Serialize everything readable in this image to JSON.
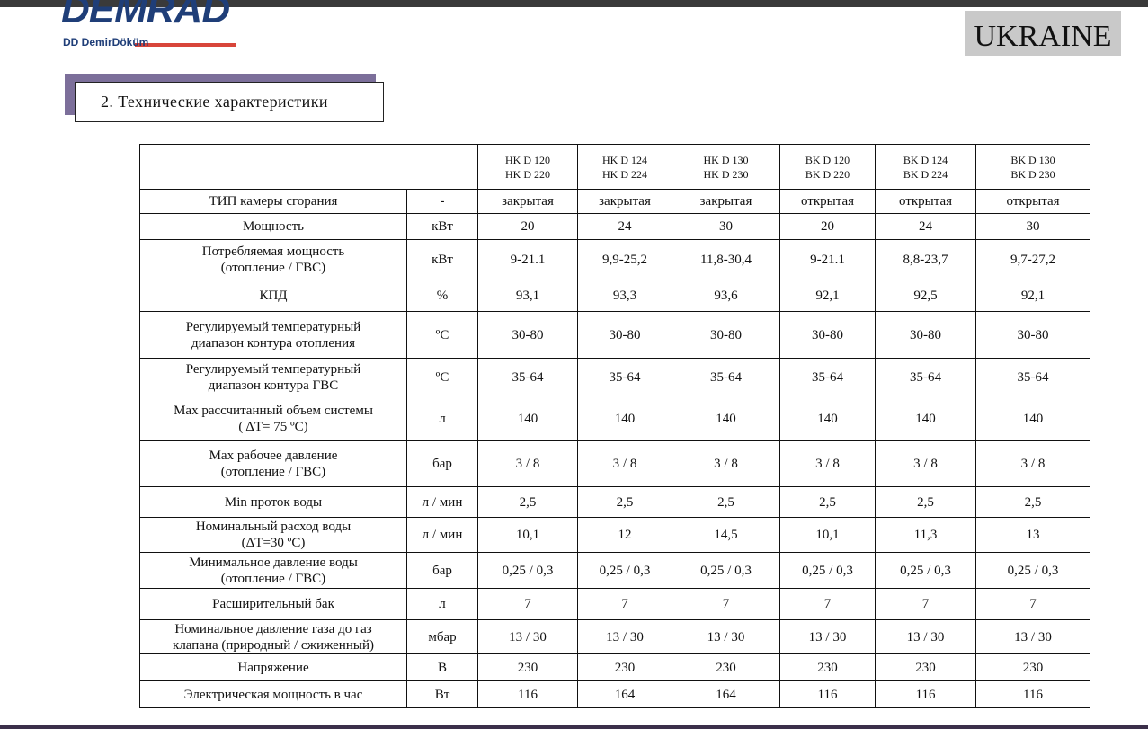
{
  "header": {
    "logo": "DEMRAD",
    "logo_sub": "DD DemirDöküm",
    "country": "UKRAINE"
  },
  "section": {
    "title": "2. Технические характеристики"
  },
  "table": {
    "columns": [
      [
        "HK D 120",
        "HK D 220"
      ],
      [
        "HK D 124",
        "HK D 224"
      ],
      [
        "HK D 130",
        "HK D 230"
      ],
      [
        "BK D 120",
        "BK D 220"
      ],
      [
        "BK D 124",
        "BK D 224"
      ],
      [
        "BK D 130",
        "BK D 230"
      ]
    ],
    "rows": [
      {
        "label": [
          "ТИП камеры сгорания"
        ],
        "unit": "-",
        "values": [
          "закрытая",
          "закрытая",
          "закрытая",
          "открытая",
          "открытая",
          "открытая"
        ]
      },
      {
        "label": [
          "Мощность"
        ],
        "unit": "кВт",
        "values": [
          "20",
          "24",
          "30",
          "20",
          "24",
          "30"
        ]
      },
      {
        "label": [
          "Потребляемая мощность",
          "(отопление / ГВС)"
        ],
        "unit": "кВт",
        "values": [
          "9-21.1",
          "9,9-25,2",
          "11,8-30,4",
          "9-21.1",
          "8,8-23,7",
          "9,7-27,2"
        ]
      },
      {
        "label": [
          "КПД"
        ],
        "unit": "%",
        "values": [
          "93,1",
          "93,3",
          "93,6",
          "92,1",
          "92,5",
          "92,1"
        ]
      },
      {
        "label": [
          "Регулируемый температурный",
          "диапазон контура отопления"
        ],
        "unit": "ºC",
        "values": [
          "30-80",
          "30-80",
          "30-80",
          "30-80",
          "30-80",
          "30-80"
        ]
      },
      {
        "label": [
          "Регулируемый температурный",
          "диапазон контура ГВС"
        ],
        "unit": "ºC",
        "values": [
          "35-64",
          "35-64",
          "35-64",
          "35-64",
          "35-64",
          "35-64"
        ]
      },
      {
        "label": [
          "Max рассчитанный объем системы",
          "( ΔT= 75 ºC)"
        ],
        "unit": "л",
        "values": [
          "140",
          "140",
          "140",
          "140",
          "140",
          "140"
        ]
      },
      {
        "label": [
          "Max рабочее давление",
          "(отопление / ГВС)"
        ],
        "unit": "бар",
        "values": [
          "3 / 8",
          "3 / 8",
          "3 / 8",
          "3 / 8",
          "3 / 8",
          "3 / 8"
        ]
      },
      {
        "label": [
          "Min проток воды"
        ],
        "unit": "л / мин",
        "values": [
          "2,5",
          "2,5",
          "2,5",
          "2,5",
          "2,5",
          "2,5"
        ]
      },
      {
        "label": [
          "Номинальный расход воды",
          "(ΔT=30 ºC)"
        ],
        "unit": "л / мин",
        "values": [
          "10,1",
          "12",
          "14,5",
          "10,1",
          "11,3",
          "13"
        ]
      },
      {
        "label": [
          "Минимальное давление воды",
          "(отопление / ГВС)"
        ],
        "unit": "бар",
        "values": [
          "0,25 / 0,3",
          "0,25 / 0,3",
          "0,25 / 0,3",
          "0,25 / 0,3",
          "0,25 / 0,3",
          "0,25 / 0,3"
        ]
      },
      {
        "label": [
          "Расширительный бак"
        ],
        "unit": "л",
        "values": [
          "7",
          "7",
          "7",
          "7",
          "7",
          "7"
        ]
      },
      {
        "label": [
          "Номинальное давление газа до газ",
          "клапана (природный / сжиженный)"
        ],
        "unit": "мбар",
        "values": [
          "13 / 30",
          "13 / 30",
          "13 / 30",
          "13 / 30",
          "13 / 30",
          "13 / 30"
        ]
      },
      {
        "label": [
          "Напряжение"
        ],
        "unit": "В",
        "values": [
          "230",
          "230",
          "230",
          "230",
          "230",
          "230"
        ]
      },
      {
        "label": [
          "Электрическая мощность в час"
        ],
        "unit": "Вт",
        "values": [
          "116",
          "164",
          "164",
          "116",
          "116",
          "116"
        ]
      }
    ]
  }
}
